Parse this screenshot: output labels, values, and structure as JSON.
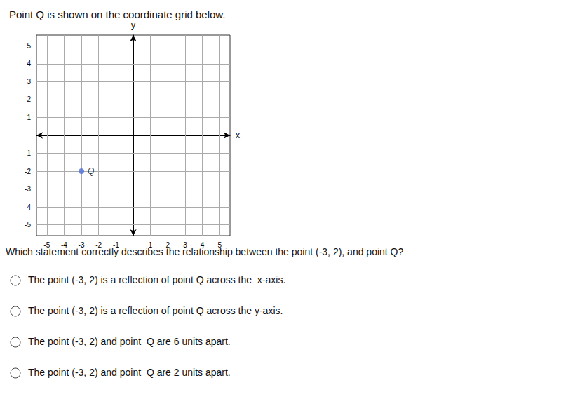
{
  "chart_data": {
    "type": "scatter",
    "title": "Point Q is shown on the coordinate grid below.",
    "x": [
      -3
    ],
    "values": [
      -2
    ],
    "point_labels": [
      "Q"
    ],
    "x_label": "x",
    "y_label": "y",
    "xlim": [
      -5.6,
      5.6
    ],
    "ylim": [
      -5.6,
      5.6
    ],
    "xticks": [
      -5,
      -4,
      -3,
      -2,
      -1,
      1,
      2,
      3,
      4,
      5
    ],
    "yticks": [
      -5,
      -4,
      -3,
      -2,
      -1,
      1,
      2,
      3,
      4,
      5
    ],
    "grid": true,
    "question": "Which statement correctly describes the relationship between the point (-3, 2), and point Q?",
    "options": [
      "The point (-3, 2) is a reflection of point Q across the  x-axis.",
      "The point (-3, 2) is a reflection of point Q across the y-axis.",
      "The point (-3, 2) and point  Q are 6 units apart.",
      "The point (-3, 2) and point  Q are 2 units apart."
    ]
  }
}
